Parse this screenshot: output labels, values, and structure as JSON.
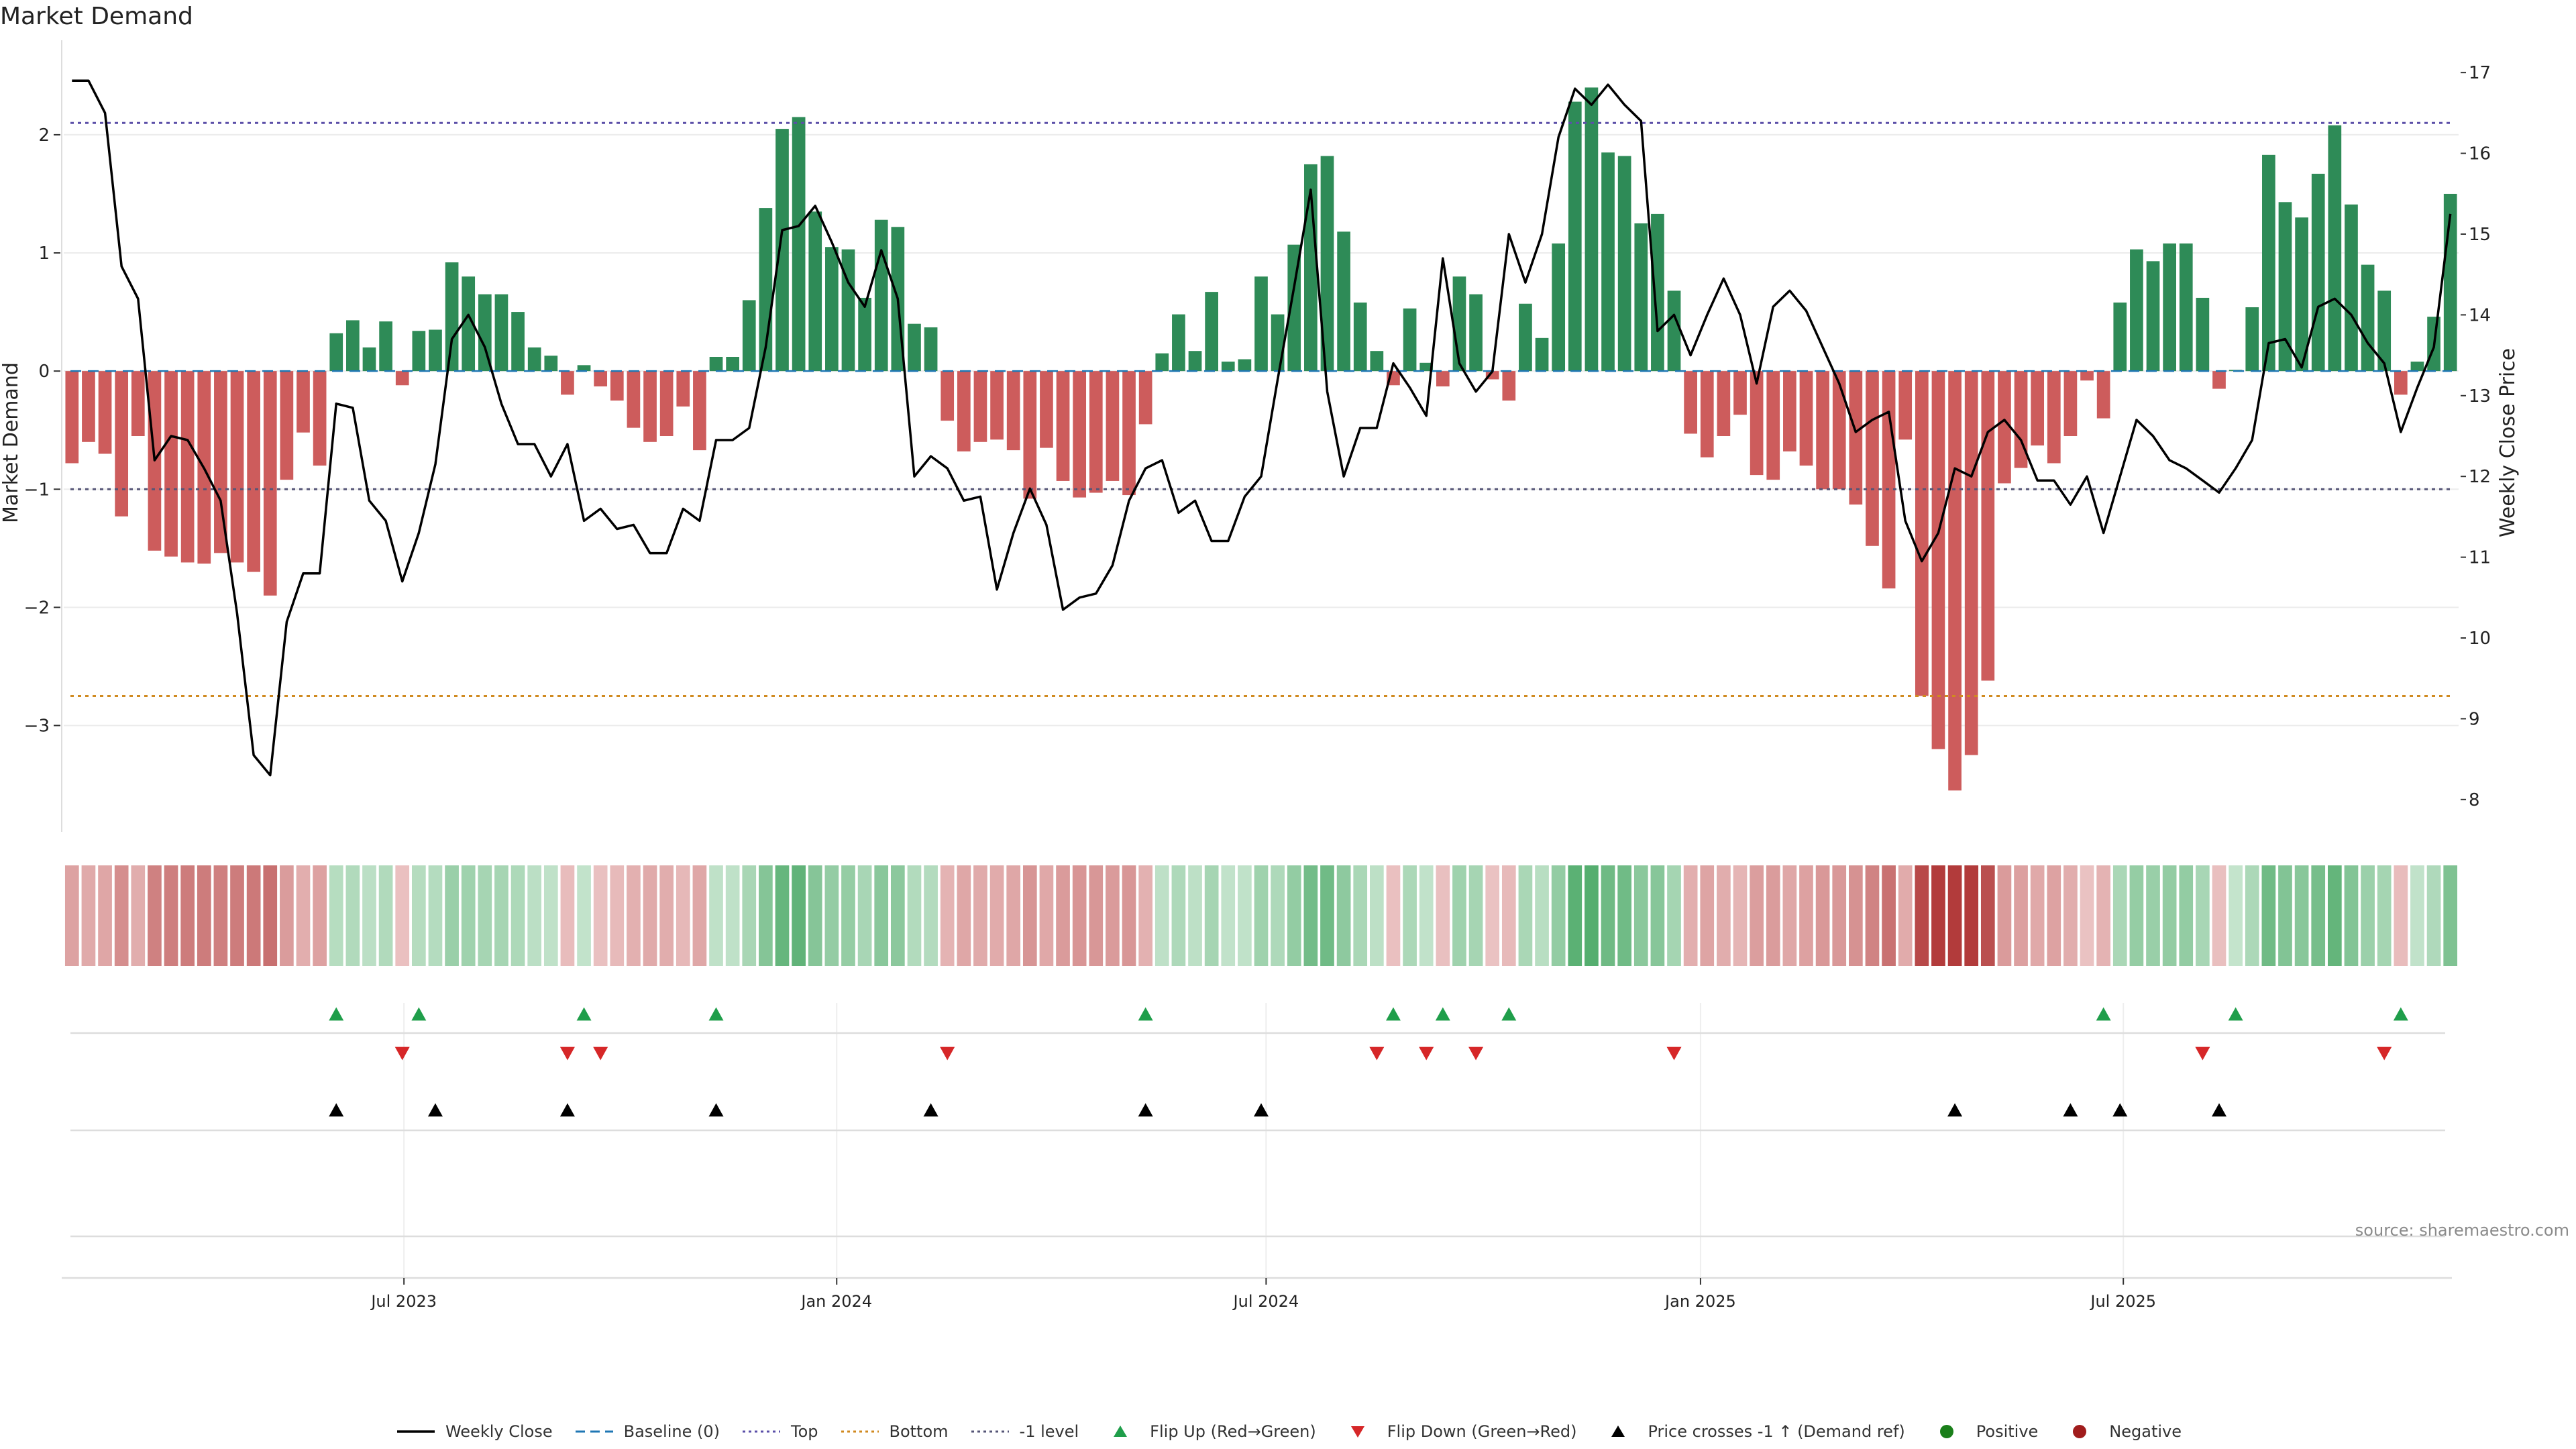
{
  "title": "Market Demand",
  "source": "source: sharemaestro.com",
  "colors": {
    "positive_bar": "#2e8b57",
    "negative_bar": "#cd5c5c",
    "price_line": "#000000",
    "top_line": "#5b4fa8",
    "bottom_line": "#d08a20",
    "minus_one_line": "#555577",
    "baseline": "#1f77b4",
    "flip_up": "#1f9e4a",
    "flip_down": "#d62728",
    "cross": "#000000"
  },
  "legend": [
    {
      "label": "Weekly Close",
      "kind": "line",
      "color": "#000000"
    },
    {
      "label": "Baseline (0)",
      "kind": "dash",
      "color": "#1f77b4"
    },
    {
      "label": "Top",
      "kind": "dot",
      "color": "#5b4fa8"
    },
    {
      "label": "Bottom",
      "kind": "dot",
      "color": "#d08a20"
    },
    {
      "label": "-1 level",
      "kind": "dot",
      "color": "#555577"
    },
    {
      "label": "Flip Up (Red→Green)",
      "kind": "tri-up",
      "color": "#1f9e4a"
    },
    {
      "label": "Flip Down (Green→Red)",
      "kind": "tri-down",
      "color": "#d62728"
    },
    {
      "label": "Price crosses -1 ↑ (Demand ref)",
      "kind": "tri-up",
      "color": "#000000"
    },
    {
      "label": "Positive",
      "kind": "circle",
      "color": "#1a7f1a"
    },
    {
      "label": "Negative",
      "kind": "circle",
      "color": "#a01c1c"
    }
  ],
  "chart_data": {
    "type": "bar",
    "title": "Market Demand",
    "ylabel": "Market Demand",
    "y2label": "Weekly Close Price",
    "ylim": [
      -3.9,
      2.8
    ],
    "y2lim": [
      7.6,
      17.4
    ],
    "yticks": [
      2,
      1,
      0,
      -1,
      -2,
      -3
    ],
    "ytick_labels": [
      "2",
      "1",
      "0",
      "−1",
      "−2",
      "−3"
    ],
    "y2ticks": [
      17,
      16,
      15,
      14,
      13,
      12,
      11,
      10,
      9,
      8
    ],
    "y2tick_labels": [
      "17",
      "16",
      "15",
      "14",
      "13",
      "12",
      "11",
      "10",
      "9",
      "8"
    ],
    "x_labels": [
      "Jul 2023",
      "Jan 2024",
      "Jul 2024",
      "Jan 2025",
      "Jul 2025"
    ],
    "x_label_weeks": [
      20.6,
      46.8,
      72.8,
      99.1,
      124.7
    ],
    "levels": {
      "top": 2.1,
      "bottom": -2.75,
      "minus_one": -1.0,
      "baseline": 0
    },
    "demand": [
      -0.78,
      -0.6,
      -0.7,
      -1.23,
      -0.55,
      -1.52,
      -1.57,
      -1.62,
      -1.63,
      -1.54,
      -1.62,
      -1.7,
      -1.9,
      -0.92,
      -0.52,
      -0.8,
      0.32,
      0.43,
      0.2,
      0.42,
      -0.12,
      0.34,
      0.35,
      0.92,
      0.8,
      0.65,
      0.65,
      0.5,
      0.2,
      0.13,
      -0.2,
      0.05,
      -0.13,
      -0.25,
      -0.48,
      -0.6,
      -0.55,
      -0.3,
      -0.67,
      0.12,
      0.12,
      0.6,
      1.38,
      2.05,
      2.15,
      1.35,
      1.05,
      1.03,
      0.62,
      1.28,
      1.22,
      0.4,
      0.37,
      -0.42,
      -0.68,
      -0.6,
      -0.58,
      -0.67,
      -1.08,
      -0.65,
      -0.93,
      -1.07,
      -1.03,
      -0.93,
      -1.05,
      -0.45,
      0.15,
      0.48,
      0.17,
      0.67,
      0.08,
      0.1,
      0.8,
      0.48,
      1.07,
      1.75,
      1.82,
      1.18,
      0.58,
      0.17,
      -0.12,
      0.53,
      0.07,
      -0.13,
      0.8,
      0.65,
      -0.07,
      -0.25,
      0.57,
      0.28,
      1.08,
      2.28,
      2.4,
      1.85,
      1.82,
      1.25,
      1.33,
      0.68,
      -0.53,
      -0.73,
      -0.55,
      -0.37,
      -0.88,
      -0.92,
      -0.68,
      -0.8,
      -1.0,
      -1.0,
      -1.13,
      -1.48,
      -1.84,
      -0.58,
      -2.75,
      -3.2,
      -3.55,
      -3.25,
      -2.62,
      -0.95,
      -0.82,
      -0.63,
      -0.78,
      -0.55,
      -0.08,
      -0.4,
      0.58,
      1.03,
      0.93,
      1.08,
      1.08,
      0.62,
      -0.15,
      0.01,
      0.54,
      1.83,
      1.43,
      1.3,
      1.67,
      2.08,
      1.41,
      0.9,
      0.68,
      -0.2,
      0.08,
      0.46,
      1.5
    ],
    "price": [
      16.9,
      16.9,
      16.5,
      14.6,
      14.2,
      12.2,
      12.5,
      12.45,
      12.1,
      11.7,
      10.3,
      8.55,
      8.3,
      10.2,
      10.8,
      10.8,
      12.9,
      12.85,
      11.7,
      11.45,
      10.7,
      11.3,
      12.15,
      13.7,
      14.0,
      13.6,
      12.9,
      12.4,
      12.4,
      12.0,
      12.4,
      11.45,
      11.6,
      11.35,
      11.4,
      11.05,
      11.05,
      11.6,
      11.45,
      12.45,
      12.45,
      12.6,
      13.6,
      15.05,
      15.1,
      15.35,
      14.9,
      14.4,
      14.1,
      14.8,
      14.2,
      12.0,
      12.25,
      12.1,
      11.7,
      11.75,
      10.6,
      11.3,
      11.85,
      11.4,
      10.35,
      10.5,
      10.55,
      10.9,
      11.7,
      12.1,
      12.2,
      11.55,
      11.7,
      11.2,
      11.2,
      11.75,
      12.0,
      13.2,
      14.35,
      15.55,
      13.05,
      12.0,
      12.6,
      12.6,
      13.4,
      13.1,
      12.75,
      14.7,
      13.4,
      13.05,
      13.3,
      15.0,
      14.4,
      15.0,
      16.2,
      16.8,
      16.6,
      16.85,
      16.6,
      16.4,
      13.8,
      14.0,
      13.5,
      14.0,
      14.45,
      14.0,
      13.15,
      14.1,
      14.3,
      14.05,
      13.6,
      13.15,
      12.55,
      12.7,
      12.8,
      11.45,
      10.95,
      11.3,
      12.1,
      12.0,
      12.55,
      12.7,
      12.45,
      11.95,
      11.95,
      11.65,
      12.0,
      11.3,
      12.0,
      12.7,
      12.5,
      12.2,
      12.1,
      11.95,
      11.8,
      12.1,
      12.45,
      13.65,
      13.7,
      13.35,
      14.1,
      14.2,
      14.0,
      13.65,
      13.4,
      12.55,
      13.1,
      13.6,
      15.25
    ],
    "flip_up_weeks": [
      16,
      21,
      31,
      39,
      65,
      80,
      83,
      87,
      123,
      131,
      141
    ],
    "flip_down_weeks": [
      20,
      30,
      32,
      53,
      79,
      82,
      85,
      97,
      129,
      140
    ],
    "cross_weeks": [
      16,
      22,
      30,
      39,
      52,
      65,
      72,
      114,
      121,
      124,
      130
    ]
  }
}
